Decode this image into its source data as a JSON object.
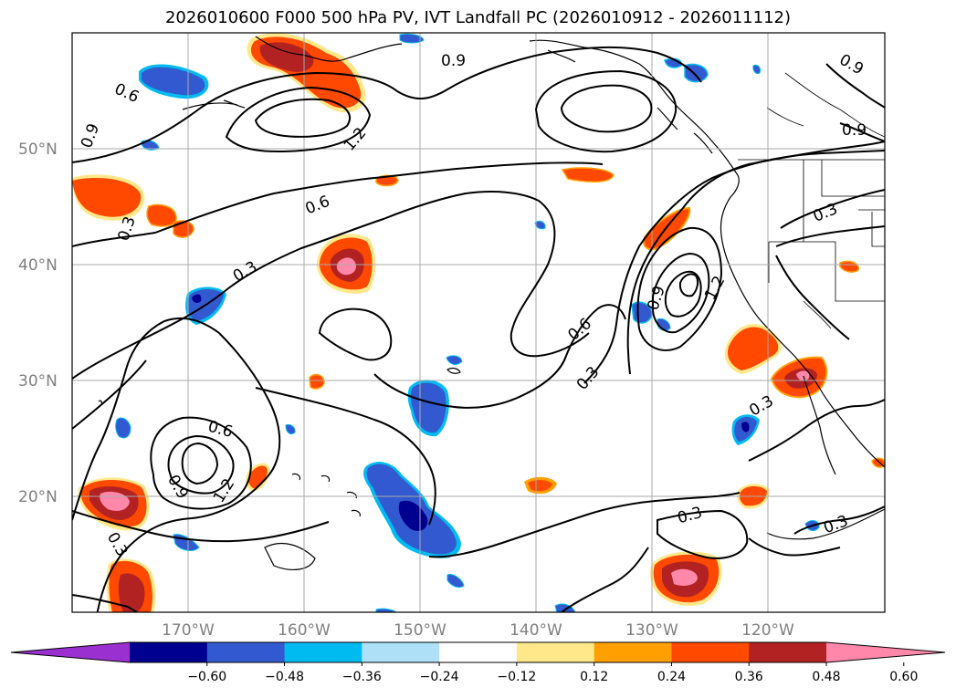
{
  "title": "2026010600 F000 500 hPa PV, IVT Landfall PC (2026010912 - 2026011112)",
  "lat_labels": [
    "50°N",
    "40°N",
    "30°N",
    "20°N"
  ],
  "lon_labels": [
    "170°W",
    "160°W",
    "150°W",
    "140°W",
    "130°W",
    "120°W"
  ],
  "colorbar": {
    "tick_labels": [
      "−0.60",
      "−0.48",
      "−0.36",
      "−0.24",
      "−0.12",
      "0.12",
      "0.24",
      "0.36",
      "0.48",
      "0.60"
    ],
    "colors": [
      "#9b30d0",
      "#000090",
      "#3359d0",
      "#00bbf0",
      "#aee0f8",
      "#ffffff",
      "#ffe88a",
      "#ffa000",
      "#ff4800",
      "#b22222",
      "#ff88aa"
    ]
  },
  "contour_labels": [
    "0.9",
    "0.6",
    "0.9",
    "1.2",
    "0.9",
    "0.9",
    "0.6",
    "0.3",
    "0.3",
    "0.3",
    "0.9",
    "1.2",
    "0.6",
    "0.3",
    "0.6",
    "0.9",
    "1.2",
    "0.3",
    "0.3",
    "0.3",
    "0.3"
  ],
  "map": {
    "projection": "PlateCarree",
    "extent": [
      "180°W",
      "110°W",
      "10°N",
      "60°N"
    ],
    "gridlines": true,
    "coastlines": true,
    "borders": true
  }
}
